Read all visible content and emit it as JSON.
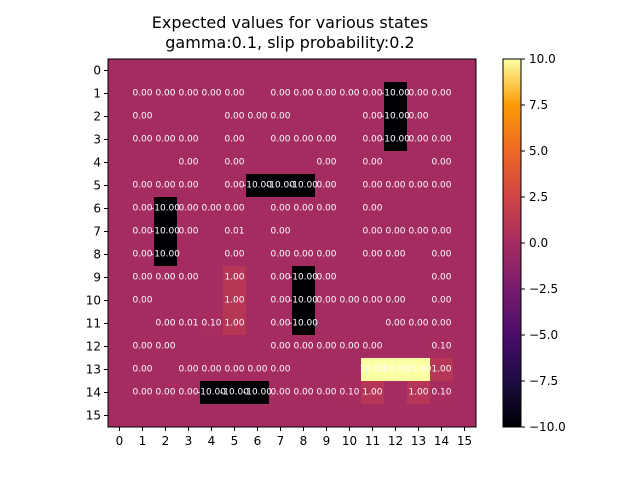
{
  "chart_data": {
    "type": "heatmap",
    "title": "Expected values for various states",
    "subtitle": "gamma:0.1, slip probability:0.2",
    "x_ticks": [
      "0",
      "1",
      "2",
      "3",
      "4",
      "5",
      "6",
      "7",
      "8",
      "9",
      "10",
      "11",
      "12",
      "13",
      "14",
      "15"
    ],
    "y_ticks": [
      "0",
      "1",
      "2",
      "3",
      "4",
      "5",
      "6",
      "7",
      "8",
      "9",
      "10",
      "11",
      "12",
      "13",
      "14",
      "15"
    ],
    "colormap": "inferno",
    "vmin": -10,
    "vmax": 10,
    "colorbar_ticks": [
      "10.0",
      "7.5",
      "5.0",
      "2.5",
      "0.0",
      "−2.5",
      "−5.0",
      "−7.5",
      "−10.0"
    ],
    "colorbar_tick_values": [
      10,
      7.5,
      5,
      2.5,
      0,
      -2.5,
      -5,
      -7.5,
      -10
    ],
    "values": [
      [
        0,
        0,
        0,
        0,
        0,
        0,
        0,
        0,
        0,
        0,
        0,
        0,
        0,
        0,
        0,
        0
      ],
      [
        0,
        0,
        0,
        0,
        0,
        0,
        0,
        0,
        0,
        0,
        0,
        0,
        -10,
        0,
        0,
        0
      ],
      [
        0,
        0,
        0,
        0,
        0,
        0,
        0,
        0,
        0,
        0,
        0,
        0,
        -10,
        0,
        0,
        0
      ],
      [
        0,
        0,
        0,
        0,
        0,
        0,
        0,
        0,
        0,
        0,
        0,
        0,
        -10,
        0,
        0,
        0
      ],
      [
        0,
        0,
        0,
        0,
        0,
        0,
        0,
        0,
        0,
        0,
        0,
        0,
        0,
        0,
        0,
        0
      ],
      [
        0,
        0,
        0,
        0,
        0,
        0,
        -10,
        -10,
        -10,
        0,
        0,
        0,
        0,
        0,
        0,
        0
      ],
      [
        0,
        0,
        -10,
        0,
        0,
        0,
        0,
        0,
        0,
        0,
        0,
        0,
        0,
        0,
        0,
        0
      ],
      [
        0,
        0,
        -10,
        0,
        0,
        0.01,
        0,
        0,
        0,
        0,
        0,
        0,
        0,
        0,
        0,
        0
      ],
      [
        0,
        0,
        -10,
        0,
        0,
        0,
        0,
        0,
        0,
        0,
        0,
        0,
        0,
        0,
        0,
        0
      ],
      [
        0,
        0,
        0,
        0,
        0,
        1,
        0,
        0,
        -10,
        0,
        0,
        0,
        0,
        0,
        0,
        0
      ],
      [
        0,
        0,
        0,
        0,
        0,
        1,
        0,
        0,
        -10,
        0,
        0,
        0,
        0,
        0,
        0,
        0
      ],
      [
        0,
        0,
        0,
        0.01,
        0.1,
        1,
        0,
        0,
        -10,
        0,
        0,
        0,
        0,
        0,
        0,
        0
      ],
      [
        0,
        0,
        0,
        0,
        0,
        0,
        0,
        0,
        0,
        0,
        0,
        0,
        0,
        0,
        0.1,
        0
      ],
      [
        0,
        0,
        0,
        0,
        0,
        0,
        0,
        0,
        0,
        0,
        0,
        10,
        10,
        10,
        1,
        0
      ],
      [
        0,
        0,
        0,
        0,
        -10,
        -10,
        -10,
        0,
        0,
        0,
        0.1,
        1,
        0,
        1,
        0.1,
        0
      ],
      [
        0,
        0,
        0,
        0,
        0,
        0,
        0,
        0,
        0,
        0,
        0,
        0,
        0,
        0,
        0,
        0
      ]
    ],
    "annotations": [
      {
        "row": 1,
        "col": 1,
        "text": "0.00"
      },
      {
        "row": 1,
        "col": 2,
        "text": "0.00"
      },
      {
        "row": 1,
        "col": 3,
        "text": "0.00"
      },
      {
        "row": 1,
        "col": 4,
        "text": "0.00"
      },
      {
        "row": 1,
        "col": 5,
        "text": "0.00"
      },
      {
        "row": 1,
        "col": 7,
        "text": "0.00"
      },
      {
        "row": 1,
        "col": 8,
        "text": "0.00"
      },
      {
        "row": 1,
        "col": 9,
        "text": "0.00"
      },
      {
        "row": 1,
        "col": 10,
        "text": "0.00"
      },
      {
        "row": 1,
        "col": 11,
        "text": "0.00"
      },
      {
        "row": 1,
        "col": 12,
        "text": "-10.00"
      },
      {
        "row": 1,
        "col": 13,
        "text": "0.00"
      },
      {
        "row": 1,
        "col": 14,
        "text": "0.00"
      },
      {
        "row": 2,
        "col": 1,
        "text": "0.00"
      },
      {
        "row": 2,
        "col": 5,
        "text": "0.00"
      },
      {
        "row": 2,
        "col": 6,
        "text": "0.00"
      },
      {
        "row": 2,
        "col": 7,
        "text": "0.00"
      },
      {
        "row": 2,
        "col": 11,
        "text": "0.00"
      },
      {
        "row": 2,
        "col": 12,
        "text": "-10.00"
      },
      {
        "row": 2,
        "col": 13,
        "text": "0.00"
      },
      {
        "row": 3,
        "col": 1,
        "text": "0.00"
      },
      {
        "row": 3,
        "col": 2,
        "text": "0.00"
      },
      {
        "row": 3,
        "col": 3,
        "text": "0.00"
      },
      {
        "row": 3,
        "col": 5,
        "text": "0.00"
      },
      {
        "row": 3,
        "col": 7,
        "text": "0.00"
      },
      {
        "row": 3,
        "col": 8,
        "text": "0.00"
      },
      {
        "row": 3,
        "col": 9,
        "text": "0.00"
      },
      {
        "row": 3,
        "col": 11,
        "text": "0.00"
      },
      {
        "row": 3,
        "col": 12,
        "text": "-10.00"
      },
      {
        "row": 3,
        "col": 13,
        "text": "0.00"
      },
      {
        "row": 3,
        "col": 14,
        "text": "0.00"
      },
      {
        "row": 4,
        "col": 3,
        "text": "0.00"
      },
      {
        "row": 4,
        "col": 5,
        "text": "0.00"
      },
      {
        "row": 4,
        "col": 9,
        "text": "0.00"
      },
      {
        "row": 4,
        "col": 11,
        "text": "0.00"
      },
      {
        "row": 4,
        "col": 14,
        "text": "0.00"
      },
      {
        "row": 5,
        "col": 1,
        "text": "0.00"
      },
      {
        "row": 5,
        "col": 2,
        "text": "0.00"
      },
      {
        "row": 5,
        "col": 3,
        "text": "0.00"
      },
      {
        "row": 5,
        "col": 5,
        "text": "0.00"
      },
      {
        "row": 5,
        "col": 6,
        "text": "-10.00"
      },
      {
        "row": 5,
        "col": 7,
        "text": "-10.00"
      },
      {
        "row": 5,
        "col": 8,
        "text": "-10.00"
      },
      {
        "row": 5,
        "col": 9,
        "text": "0.00"
      },
      {
        "row": 5,
        "col": 11,
        "text": "0.00"
      },
      {
        "row": 5,
        "col": 12,
        "text": "0.00"
      },
      {
        "row": 5,
        "col": 13,
        "text": "0.00"
      },
      {
        "row": 5,
        "col": 14,
        "text": "0.00"
      },
      {
        "row": 6,
        "col": 1,
        "text": "0.00"
      },
      {
        "row": 6,
        "col": 2,
        "text": "-10.00"
      },
      {
        "row": 6,
        "col": 3,
        "text": "0.00"
      },
      {
        "row": 6,
        "col": 4,
        "text": "0.00"
      },
      {
        "row": 6,
        "col": 5,
        "text": "0.00"
      },
      {
        "row": 6,
        "col": 7,
        "text": "0.00"
      },
      {
        "row": 6,
        "col": 8,
        "text": "0.00"
      },
      {
        "row": 6,
        "col": 9,
        "text": "0.00"
      },
      {
        "row": 6,
        "col": 11,
        "text": "0.00"
      },
      {
        "row": 7,
        "col": 1,
        "text": "0.00"
      },
      {
        "row": 7,
        "col": 2,
        "text": "-10.00"
      },
      {
        "row": 7,
        "col": 3,
        "text": "0.00"
      },
      {
        "row": 7,
        "col": 5,
        "text": "0.01"
      },
      {
        "row": 7,
        "col": 7,
        "text": "0.00"
      },
      {
        "row": 7,
        "col": 11,
        "text": "0.00"
      },
      {
        "row": 7,
        "col": 12,
        "text": "0.00"
      },
      {
        "row": 7,
        "col": 13,
        "text": "0.00"
      },
      {
        "row": 7,
        "col": 14,
        "text": "0.00"
      },
      {
        "row": 8,
        "col": 1,
        "text": "0.00"
      },
      {
        "row": 8,
        "col": 2,
        "text": "-10.00"
      },
      {
        "row": 8,
        "col": 5,
        "text": "0.00"
      },
      {
        "row": 8,
        "col": 7,
        "text": "0.00"
      },
      {
        "row": 8,
        "col": 8,
        "text": "0.00"
      },
      {
        "row": 8,
        "col": 9,
        "text": "0.00"
      },
      {
        "row": 8,
        "col": 11,
        "text": "0.00"
      },
      {
        "row": 8,
        "col": 12,
        "text": "0.00"
      },
      {
        "row": 8,
        "col": 14,
        "text": "0.00"
      },
      {
        "row": 9,
        "col": 1,
        "text": "0.00"
      },
      {
        "row": 9,
        "col": 2,
        "text": "0.00"
      },
      {
        "row": 9,
        "col": 3,
        "text": "0.00"
      },
      {
        "row": 9,
        "col": 5,
        "text": "1.00"
      },
      {
        "row": 9,
        "col": 7,
        "text": "0.00"
      },
      {
        "row": 9,
        "col": 8,
        "text": "-10.00"
      },
      {
        "row": 9,
        "col": 9,
        "text": "0.00"
      },
      {
        "row": 9,
        "col": 14,
        "text": "0.00"
      },
      {
        "row": 10,
        "col": 1,
        "text": "0.00"
      },
      {
        "row": 10,
        "col": 5,
        "text": "1.00"
      },
      {
        "row": 10,
        "col": 7,
        "text": "0.00"
      },
      {
        "row": 10,
        "col": 8,
        "text": "-10.00"
      },
      {
        "row": 10,
        "col": 9,
        "text": "0.00"
      },
      {
        "row": 10,
        "col": 10,
        "text": "0.00"
      },
      {
        "row": 10,
        "col": 11,
        "text": "0.00"
      },
      {
        "row": 10,
        "col": 12,
        "text": "0.00"
      },
      {
        "row": 10,
        "col": 14,
        "text": "0.00"
      },
      {
        "row": 11,
        "col": 2,
        "text": "0.00"
      },
      {
        "row": 11,
        "col": 3,
        "text": "0.01"
      },
      {
        "row": 11,
        "col": 4,
        "text": "0.10"
      },
      {
        "row": 11,
        "col": 5,
        "text": "1.00"
      },
      {
        "row": 11,
        "col": 7,
        "text": "0.00"
      },
      {
        "row": 11,
        "col": 8,
        "text": "-10.00"
      },
      {
        "row": 11,
        "col": 12,
        "text": "0.00"
      },
      {
        "row": 11,
        "col": 13,
        "text": "0.00"
      },
      {
        "row": 11,
        "col": 14,
        "text": "0.00"
      },
      {
        "row": 12,
        "col": 1,
        "text": "0.00"
      },
      {
        "row": 12,
        "col": 2,
        "text": "0.00"
      },
      {
        "row": 12,
        "col": 7,
        "text": "0.00"
      },
      {
        "row": 12,
        "col": 8,
        "text": "0.00"
      },
      {
        "row": 12,
        "col": 9,
        "text": "0.00"
      },
      {
        "row": 12,
        "col": 10,
        "text": "0.00"
      },
      {
        "row": 12,
        "col": 11,
        "text": "0.00"
      },
      {
        "row": 12,
        "col": 14,
        "text": "0.10"
      },
      {
        "row": 13,
        "col": 1,
        "text": "0.00"
      },
      {
        "row": 13,
        "col": 3,
        "text": "0.00"
      },
      {
        "row": 13,
        "col": 4,
        "text": "0.00"
      },
      {
        "row": 13,
        "col": 5,
        "text": "0.00"
      },
      {
        "row": 13,
        "col": 6,
        "text": "0.00"
      },
      {
        "row": 13,
        "col": 7,
        "text": "0.00"
      },
      {
        "row": 13,
        "col": 11,
        "text": "10.00"
      },
      {
        "row": 13,
        "col": 12,
        "text": "10.00"
      },
      {
        "row": 13,
        "col": 13,
        "text": "10.00"
      },
      {
        "row": 13,
        "col": 14,
        "text": "1.00"
      },
      {
        "row": 14,
        "col": 1,
        "text": "0.00"
      },
      {
        "row": 14,
        "col": 2,
        "text": "0.00"
      },
      {
        "row": 14,
        "col": 3,
        "text": "0.00"
      },
      {
        "row": 14,
        "col": 4,
        "text": "-10.00"
      },
      {
        "row": 14,
        "col": 5,
        "text": "-10.00"
      },
      {
        "row": 14,
        "col": 6,
        "text": "-10.00"
      },
      {
        "row": 14,
        "col": 7,
        "text": "0.00"
      },
      {
        "row": 14,
        "col": 8,
        "text": "0.00"
      },
      {
        "row": 14,
        "col": 9,
        "text": "0.00"
      },
      {
        "row": 14,
        "col": 10,
        "text": "0.10"
      },
      {
        "row": 14,
        "col": 11,
        "text": "1.00"
      },
      {
        "row": 14,
        "col": 13,
        "text": "1.00"
      },
      {
        "row": 14,
        "col": 14,
        "text": "0.10"
      }
    ]
  }
}
